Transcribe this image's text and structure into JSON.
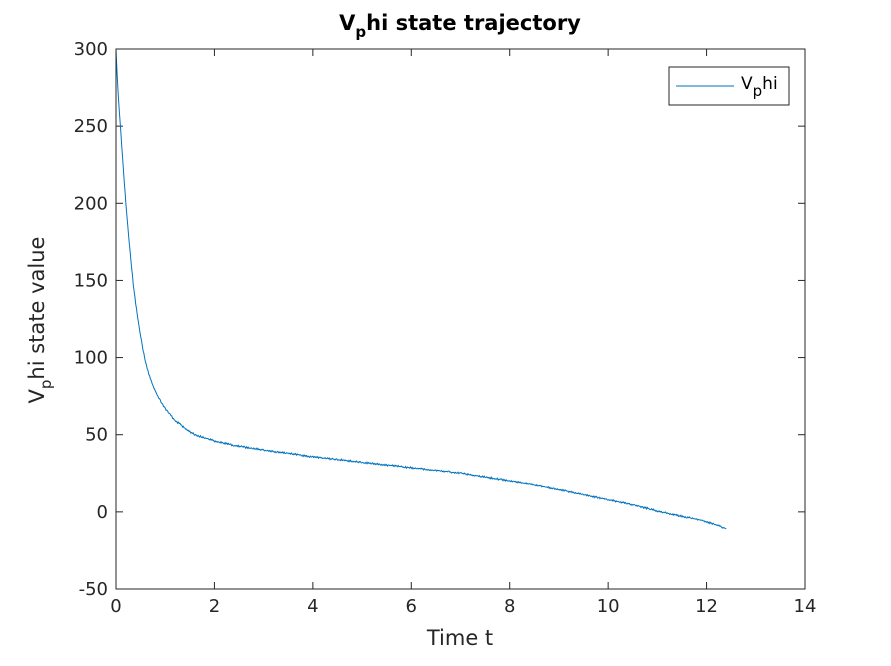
{
  "chart_data": {
    "type": "line",
    "title": {
      "base": "V",
      "sub": "p",
      "rest": "hi state trajectory"
    },
    "xlabel": "Time t",
    "ylabel": {
      "base": "V",
      "sub": "p",
      "rest": "hi state value"
    },
    "xlim": [
      0,
      14
    ],
    "ylim": [
      -50,
      300
    ],
    "xticks": [
      0,
      2,
      4,
      6,
      8,
      10,
      12,
      14
    ],
    "yticks": [
      -50,
      0,
      50,
      100,
      150,
      200,
      250,
      300
    ],
    "grid": false,
    "legend_placement": "top-right",
    "legend": {
      "base": "V",
      "sub": "p",
      "rest": "hi"
    },
    "colors": {
      "series": "#0072bd",
      "axes": "#262626"
    },
    "series": [
      {
        "x": [
          0,
          0.02,
          0.05,
          0.1,
          0.15,
          0.2,
          0.25,
          0.3,
          0.35,
          0.4,
          0.45,
          0.5,
          0.55,
          0.6,
          0.7,
          0.8,
          0.9,
          1.0,
          1.1,
          1.2,
          1.3,
          1.4,
          1.5,
          1.6,
          1.7,
          1.8,
          1.9,
          2.0,
          2.2,
          2.4,
          2.6,
          2.8,
          3.0,
          3.2,
          3.5,
          3.8,
          4.0,
          4.3,
          4.6,
          5.0,
          5.3,
          5.6,
          6.0,
          6.3,
          6.6,
          7.0,
          7.3,
          7.6,
          8.0,
          8.3,
          8.6,
          9.0,
          9.3,
          9.6,
          10.0,
          10.3,
          10.6,
          11.0,
          11.3,
          11.6,
          11.9,
          12.1,
          12.25,
          12.4
        ],
        "y": [
          300,
          285,
          268,
          245,
          222,
          200,
          181,
          164,
          148,
          135,
          124,
          114,
          105,
          97,
          86,
          78,
          72,
          67,
          63,
          59,
          57,
          54,
          52,
          50,
          49,
          48,
          47,
          46,
          44.5,
          43,
          42,
          41,
          40,
          39,
          38,
          36.5,
          35.5,
          34.5,
          33.5,
          32,
          31,
          30,
          28.5,
          27.5,
          26.5,
          25,
          23.5,
          22,
          20,
          18.5,
          17,
          14.5,
          12.5,
          10.5,
          8,
          6,
          4,
          0.5,
          -1.5,
          -3.5,
          -5.5,
          -7.5,
          -9,
          -11
        ]
      }
    ]
  }
}
